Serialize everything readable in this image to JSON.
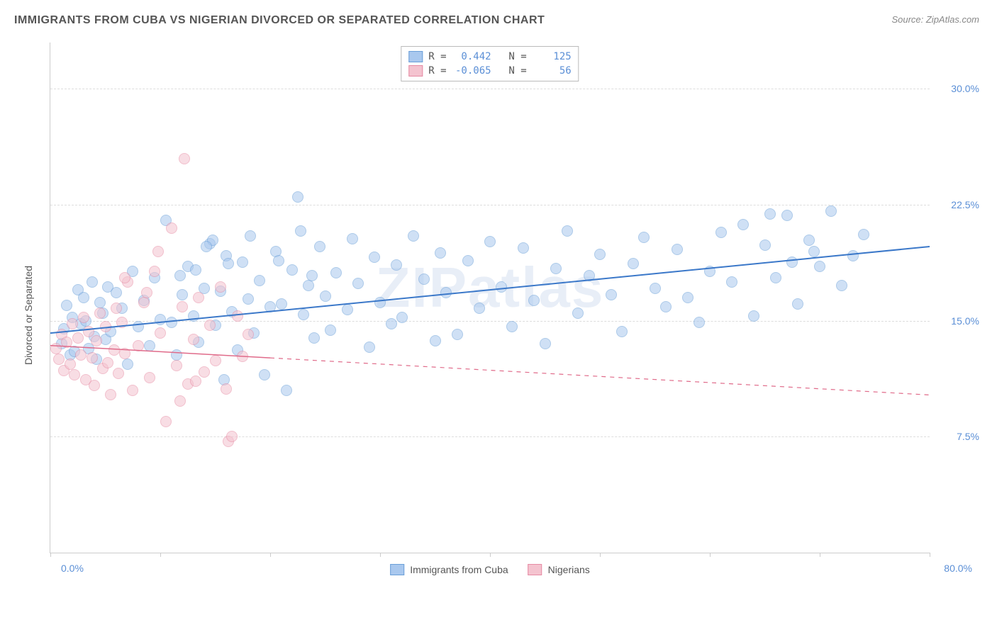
{
  "title": "IMMIGRANTS FROM CUBA VS NIGERIAN DIVORCED OR SEPARATED CORRELATION CHART",
  "source": "Source: ZipAtlas.com",
  "watermark": "ZIPatlas",
  "chart": {
    "type": "scatter",
    "y_axis_title": "Divorced or Separated",
    "xlim": [
      0,
      80
    ],
    "ylim": [
      0,
      33
    ],
    "x_label_min": "0.0%",
    "x_label_max": "80.0%",
    "x_ticks": [
      0,
      10,
      20,
      30,
      40,
      50,
      60,
      70,
      80
    ],
    "y_ticks": [
      {
        "value": 7.5,
        "label": "7.5%"
      },
      {
        "value": 15.0,
        "label": "15.0%"
      },
      {
        "value": 22.5,
        "label": "22.5%"
      },
      {
        "value": 30.0,
        "label": "30.0%"
      }
    ],
    "grid_color": "#dddddd",
    "axis_color": "#cccccc",
    "background_color": "#ffffff",
    "marker_radius": 8,
    "series": [
      {
        "name": "Immigrants from Cuba",
        "fill_color": "#a9c8ee",
        "stroke_color": "#6a9fd8",
        "fill_opacity": 0.55,
        "R": "0.442",
        "N": "125",
        "regression": {
          "x1": 0,
          "y1": 14.2,
          "x2": 80,
          "y2": 19.8,
          "solid_until_x": 80,
          "color": "#3b78c9",
          "width": 2
        },
        "points": [
          [
            1,
            13.5
          ],
          [
            1.2,
            14.5
          ],
          [
            1.5,
            16
          ],
          [
            1.8,
            12.8
          ],
          [
            2,
            15.2
          ],
          [
            2.2,
            13
          ],
          [
            2.5,
            17
          ],
          [
            2.8,
            14.8
          ],
          [
            3,
            16.5
          ],
          [
            3.2,
            15
          ],
          [
            3.5,
            13.2
          ],
          [
            3.8,
            17.5
          ],
          [
            4,
            14
          ],
          [
            4.2,
            12.5
          ],
          [
            4.5,
            16.2
          ],
          [
            4.8,
            15.5
          ],
          [
            5,
            13.8
          ],
          [
            5.2,
            17.2
          ],
          [
            5.5,
            14.3
          ],
          [
            6,
            16.8
          ],
          [
            6.5,
            15.8
          ],
          [
            7,
            12.2
          ],
          [
            7.5,
            18.2
          ],
          [
            8,
            14.6
          ],
          [
            8.5,
            16.3
          ],
          [
            9,
            13.4
          ],
          [
            9.5,
            17.8
          ],
          [
            10,
            15.1
          ],
          [
            10.5,
            21.5
          ],
          [
            11,
            14.9
          ],
          [
            11.5,
            12.8
          ],
          [
            12,
            16.7
          ],
          [
            12.5,
            18.5
          ],
          [
            13,
            15.3
          ],
          [
            13.5,
            13.6
          ],
          [
            14,
            17.1
          ],
          [
            14.5,
            20
          ],
          [
            15,
            14.7
          ],
          [
            15.5,
            16.9
          ],
          [
            16,
            19.2
          ],
          [
            16.5,
            15.6
          ],
          [
            17,
            13.1
          ],
          [
            17.5,
            18.8
          ],
          [
            18,
            16.4
          ],
          [
            18.5,
            14.2
          ],
          [
            19,
            17.6
          ],
          [
            19.5,
            11.5
          ],
          [
            20,
            15.9
          ],
          [
            20.5,
            19.5
          ],
          [
            21,
            16.1
          ],
          [
            21.5,
            10.5
          ],
          [
            22,
            18.3
          ],
          [
            22.5,
            23
          ],
          [
            23,
            15.4
          ],
          [
            23.5,
            17.3
          ],
          [
            24,
            13.9
          ],
          [
            24.5,
            19.8
          ],
          [
            25,
            16.6
          ],
          [
            25.5,
            14.4
          ],
          [
            26,
            18.1
          ],
          [
            27,
            15.7
          ],
          [
            27.5,
            20.3
          ],
          [
            28,
            17.4
          ],
          [
            29,
            13.3
          ],
          [
            29.5,
            19.1
          ],
          [
            30,
            16.2
          ],
          [
            31,
            14.8
          ],
          [
            31.5,
            18.6
          ],
          [
            32,
            15.2
          ],
          [
            33,
            20.5
          ],
          [
            34,
            17.7
          ],
          [
            35,
            13.7
          ],
          [
            35.5,
            19.4
          ],
          [
            36,
            16.8
          ],
          [
            37,
            14.1
          ],
          [
            38,
            18.9
          ],
          [
            39,
            15.8
          ],
          [
            40,
            20.1
          ],
          [
            41,
            17.2
          ],
          [
            42,
            14.6
          ],
          [
            43,
            19.7
          ],
          [
            44,
            16.3
          ],
          [
            45,
            13.5
          ],
          [
            46,
            18.4
          ],
          [
            47,
            20.8
          ],
          [
            48,
            15.5
          ],
          [
            49,
            17.9
          ],
          [
            50,
            19.3
          ],
          [
            51,
            16.7
          ],
          [
            52,
            14.3
          ],
          [
            53,
            18.7
          ],
          [
            54,
            20.4
          ],
          [
            55,
            17.1
          ],
          [
            56,
            15.9
          ],
          [
            57,
            19.6
          ],
          [
            58,
            16.5
          ],
          [
            59,
            14.9
          ],
          [
            60,
            18.2
          ],
          [
            61,
            20.7
          ],
          [
            62,
            17.5
          ],
          [
            63,
            21.2
          ],
          [
            64,
            15.3
          ],
          [
            65,
            19.9
          ],
          [
            66,
            17.8
          ],
          [
            67,
            21.8
          ],
          [
            68,
            16.1
          ],
          [
            69,
            20.2
          ],
          [
            70,
            18.5
          ],
          [
            71,
            22.1
          ],
          [
            72,
            17.3
          ],
          [
            73,
            19.2
          ],
          [
            74,
            20.6
          ],
          [
            65.5,
            21.9
          ],
          [
            67.5,
            18.8
          ],
          [
            69.5,
            19.5
          ],
          [
            11.8,
            17.9
          ],
          [
            13.2,
            18.3
          ],
          [
            14.8,
            20.2
          ],
          [
            16.2,
            18.7
          ],
          [
            22.8,
            20.8
          ],
          [
            20.8,
            18.9
          ],
          [
            23.8,
            17.9
          ],
          [
            18.2,
            20.5
          ],
          [
            14.2,
            19.8
          ],
          [
            15.8,
            11.2
          ]
        ]
      },
      {
        "name": "Nigerians",
        "fill_color": "#f4c3cf",
        "stroke_color": "#e68ba4",
        "fill_opacity": 0.55,
        "R": "-0.065",
        "N": "56",
        "regression": {
          "x1": 0,
          "y1": 13.4,
          "x2": 80,
          "y2": 10.2,
          "solid_until_x": 20,
          "color": "#e06b8a",
          "width": 1.5
        },
        "points": [
          [
            0.5,
            13.2
          ],
          [
            0.8,
            12.5
          ],
          [
            1,
            14.1
          ],
          [
            1.2,
            11.8
          ],
          [
            1.5,
            13.6
          ],
          [
            1.8,
            12.2
          ],
          [
            2,
            14.8
          ],
          [
            2.2,
            11.5
          ],
          [
            2.5,
            13.9
          ],
          [
            2.8,
            12.8
          ],
          [
            3,
            15.2
          ],
          [
            3.2,
            11.2
          ],
          [
            3.5,
            14.3
          ],
          [
            3.8,
            12.6
          ],
          [
            4,
            10.8
          ],
          [
            4.2,
            13.7
          ],
          [
            4.5,
            15.5
          ],
          [
            4.8,
            11.9
          ],
          [
            5,
            14.6
          ],
          [
            5.2,
            12.3
          ],
          [
            5.5,
            10.2
          ],
          [
            5.8,
            13.1
          ],
          [
            6,
            15.8
          ],
          [
            6.2,
            11.6
          ],
          [
            6.5,
            14.9
          ],
          [
            6.8,
            12.9
          ],
          [
            7,
            17.5
          ],
          [
            7.5,
            10.5
          ],
          [
            8,
            13.4
          ],
          [
            8.5,
            16.2
          ],
          [
            9,
            11.3
          ],
          [
            9.5,
            18.2
          ],
          [
            10,
            14.2
          ],
          [
            10.5,
            8.5
          ],
          [
            11,
            21
          ],
          [
            11.5,
            12.1
          ],
          [
            12,
            15.9
          ],
          [
            12.2,
            25.5
          ],
          [
            12.5,
            10.9
          ],
          [
            13,
            13.8
          ],
          [
            13.5,
            16.5
          ],
          [
            14,
            11.7
          ],
          [
            14.5,
            14.7
          ],
          [
            15,
            12.4
          ],
          [
            15.5,
            17.2
          ],
          [
            16,
            10.6
          ],
          [
            16.2,
            7.2
          ],
          [
            16.5,
            7.5
          ],
          [
            17,
            15.3
          ],
          [
            17.5,
            12.7
          ],
          [
            18,
            14.1
          ],
          [
            11.8,
            9.8
          ],
          [
            13.2,
            11.1
          ],
          [
            8.8,
            16.8
          ],
          [
            9.8,
            19.5
          ],
          [
            6.8,
            17.8
          ]
        ]
      }
    ]
  }
}
